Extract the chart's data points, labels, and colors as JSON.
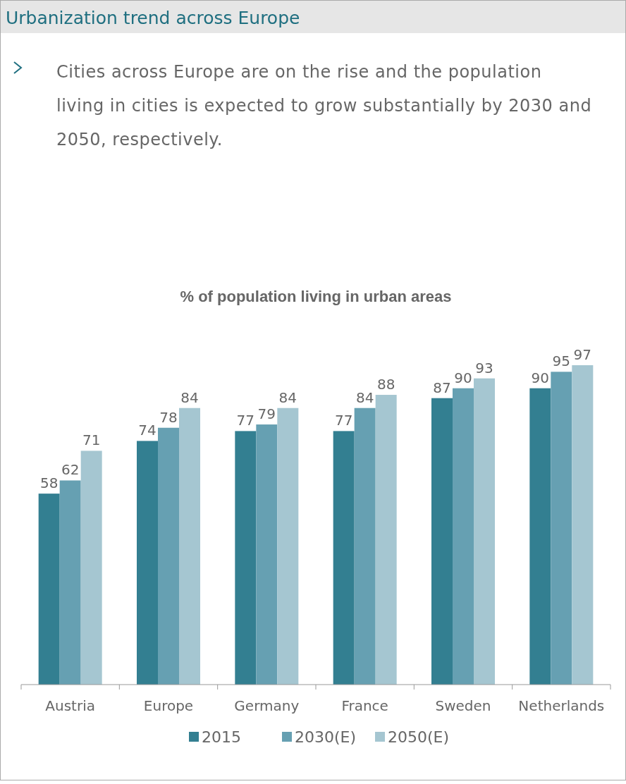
{
  "chart_data": {
    "type": "bar",
    "title": "Urbanization trend across Europe",
    "subtitle": "Cities across Europe are on the rise and the population living in cities is expected to grow substantially by 2030 and 2050, respectively.",
    "annotations": [
      "% of population living in urban areas"
    ],
    "categories": [
      "Austria",
      "Europe",
      "Germany",
      "France",
      "Sweden",
      "Netherlands"
    ],
    "series": [
      {
        "name": "2015",
        "color": "#337f91",
        "values": [
          58,
          74,
          77,
          77,
          87,
          90
        ]
      },
      {
        "name": "2030(E)",
        "color": "#66a0b2",
        "values": [
          62,
          78,
          79,
          84,
          90,
          95
        ]
      },
      {
        "name": "2050(E)",
        "color": "#a5c6d1",
        "values": [
          71,
          84,
          84,
          88,
          93,
          97
        ]
      }
    ],
    "tick_labels": "x",
    "data_labels": true,
    "legend": "bottom"
  }
}
